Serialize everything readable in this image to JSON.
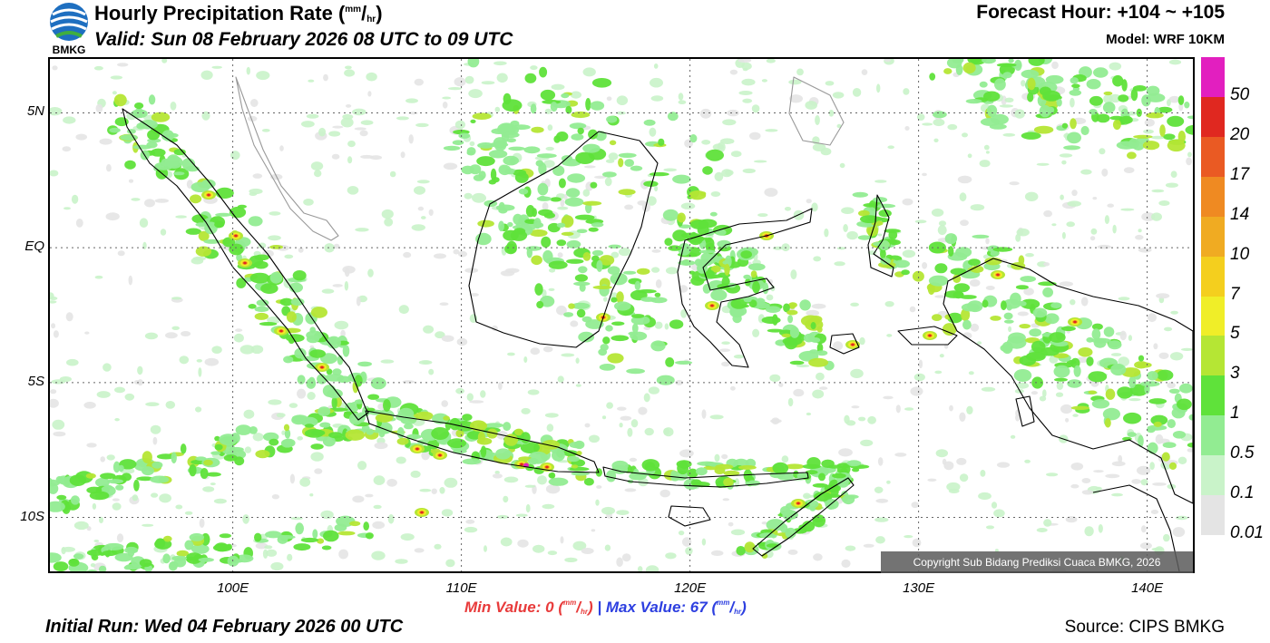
{
  "header": {
    "logo_text": "BMKG",
    "title_prefix": "Hourly Precipitation Rate (",
    "title_unit_num": "mm",
    "title_unit_sep": "/",
    "title_unit_den": "hr",
    "title_suffix": ")",
    "valid": "Valid: Sun 08 February 2026 08 UTC to 09 UTC",
    "forecast_hour": "Forecast Hour: +104 ~ +105",
    "model": "Model: WRF 10KM"
  },
  "axes": {
    "y_labels": [
      "5N",
      "EQ",
      "5S",
      "10S"
    ],
    "y_values": [
      5,
      0,
      -5,
      -10
    ],
    "x_labels": [
      "100E",
      "110E",
      "120E",
      "130E",
      "140E"
    ],
    "x_values": [
      100,
      110,
      120,
      130,
      140
    ],
    "lon_range": [
      92,
      142
    ],
    "lat_range": [
      -12,
      7
    ]
  },
  "legend": {
    "labels": [
      "50",
      "20",
      "17",
      "14",
      "10",
      "7",
      "5",
      "3",
      "1",
      "0.5",
      "0.1",
      "0.01"
    ],
    "colors": [
      "#e21fbf",
      "#e02820",
      "#ea5a23",
      "#ef8a22",
      "#f0ab22",
      "#f4cf1e",
      "#f0ee28",
      "#b5e634",
      "#5fe23a",
      "#92ec92",
      "#c9f3c9",
      "#e4e4e4"
    ]
  },
  "precip_colors": {
    "light": "#c9f3c9",
    "mid": "#92ec92",
    "green": "#5fe23a",
    "lime": "#b5e634",
    "yellow": "#f0ee28",
    "orange": "#f0ab22",
    "red": "#e02820",
    "magenta": "#e21fbf"
  },
  "footer": {
    "copyright": "Copyright Sub Bidang Prediksi Cuaca BMKG, 2026",
    "min_label": "Min Value:",
    "min_value": "0",
    "max_label": "Max Value:",
    "max_value": "67",
    "unit_num": "mm",
    "unit_sep": "/",
    "unit_den": "hr",
    "separator": "|",
    "initial_run": "Initial Run: Wed 04 February 2026 00 UTC",
    "source": "Source: CIPS BMKG"
  }
}
